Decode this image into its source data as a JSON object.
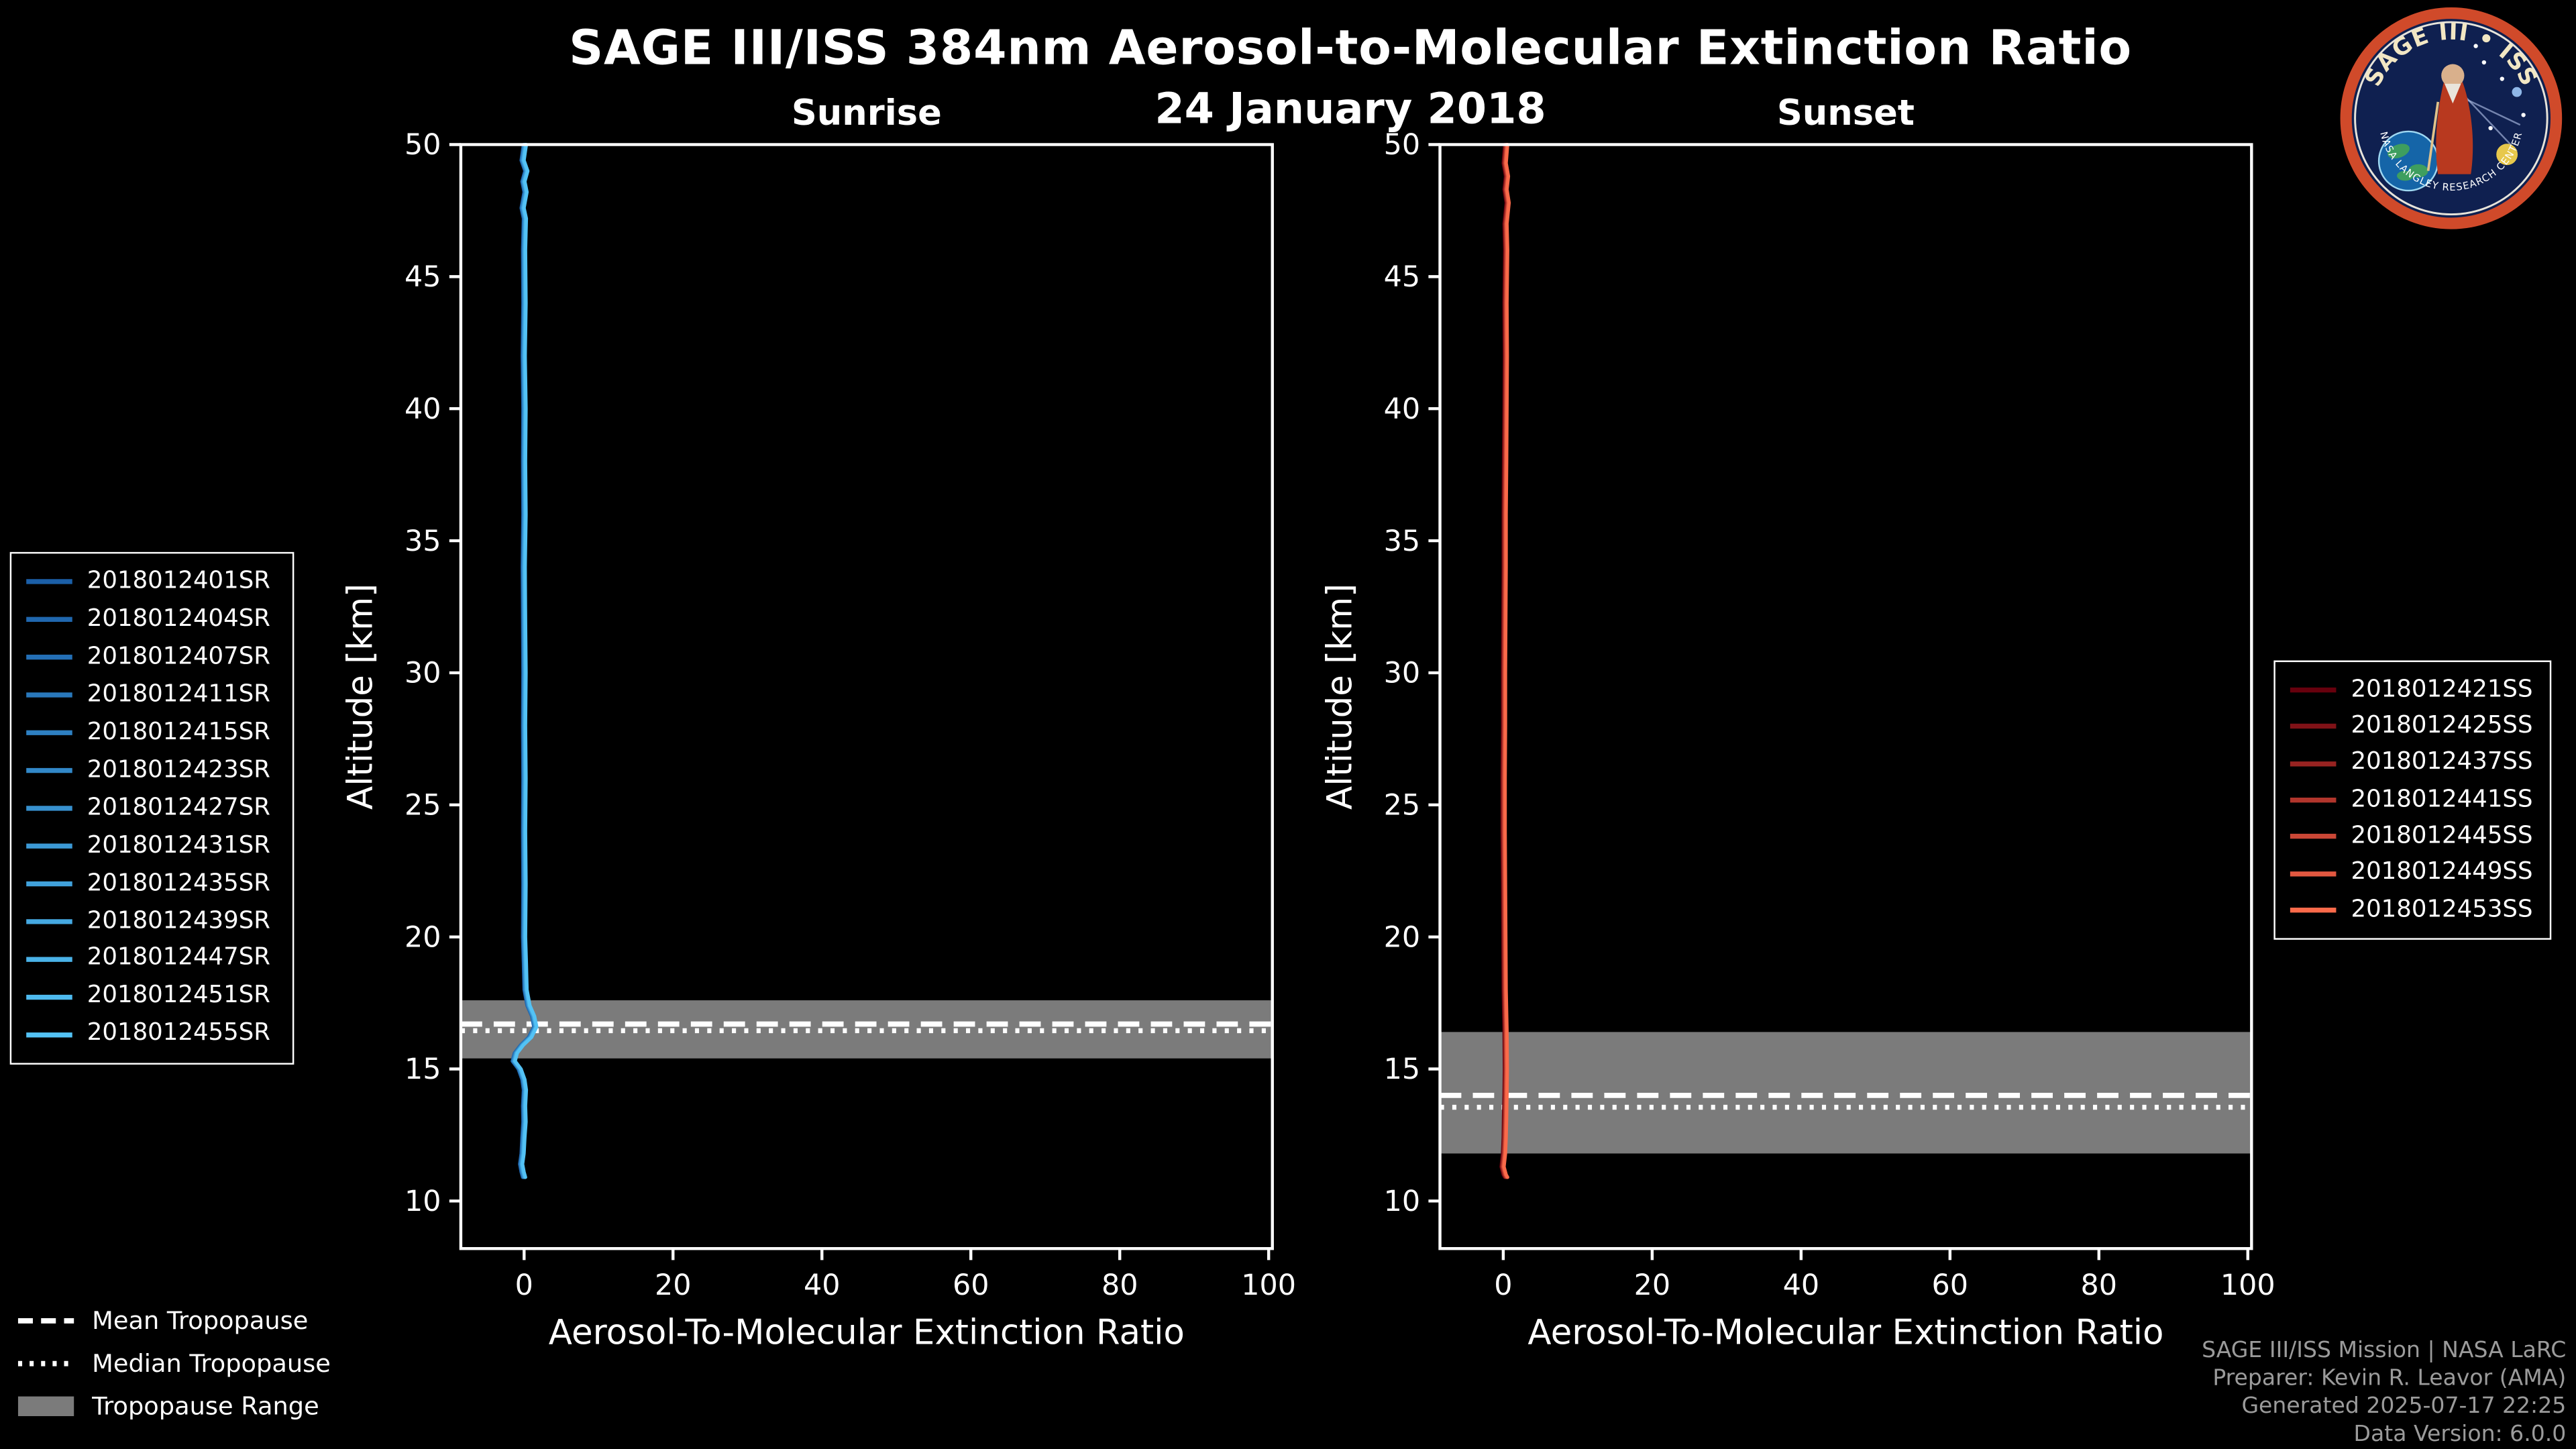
{
  "title": "SAGE III/ISS 384nm Aerosol-to-Molecular Extinction Ratio",
  "subtitle": "24 January 2018",
  "logo": {
    "arc_top": "SAGE III • ISS",
    "arc_bottom": "NASA LANGLEY RESEARCH CENTER"
  },
  "credits": [
    "SAGE III/ISS Mission | NASA LaRC",
    "Preparer: Kevin R. Leavor (AMA)",
    "Generated 2025-07-17 22:25",
    "Data Version: 6.0.0"
  ],
  "tropopause_legend": [
    {
      "label": "Mean Tropopause",
      "style": "dashed"
    },
    {
      "label": "Median Tropopause",
      "style": "dotted"
    },
    {
      "label": "Tropopause Range",
      "style": "band"
    }
  ],
  "colors": {
    "background": "#000000",
    "foreground": "#ffffff",
    "band": "#7b7b7b",
    "credits_text": "#9b9b9b",
    "sunrise_accent": "#53c2f5",
    "sunset_accent": "#fb6a4a"
  },
  "chart_data": {
    "type": "line",
    "panels": [
      {
        "id": "sunrise",
        "title": "Sunrise",
        "xlabel": "Aerosol-To-Molecular Extinction Ratio",
        "ylabel": "Altitude [km]",
        "xlim": [
          -8.5,
          100.5
        ],
        "ylim": [
          8.2,
          50
        ],
        "xticks": [
          0,
          20,
          40,
          60,
          80,
          100
        ],
        "yticks": [
          10,
          15,
          20,
          25,
          30,
          35,
          40,
          45,
          50
        ],
        "tropopause_range_km": [
          15.4,
          17.6
        ],
        "mean_tropopause_km": 16.7,
        "median_tropopause_km": 16.45,
        "series": [
          {
            "label": "2018012401SR",
            "color": "#1b5fa8"
          },
          {
            "label": "2018012404SR",
            "color": "#2067ae"
          },
          {
            "label": "2018012407SR",
            "color": "#246fb5"
          },
          {
            "label": "2018012411SR",
            "color": "#2978bb"
          },
          {
            "label": "2018012415SR",
            "color": "#2e80c2"
          },
          {
            "label": "2018012423SR",
            "color": "#3288c8"
          },
          {
            "label": "2018012427SR",
            "color": "#3790ce"
          },
          {
            "label": "2018012431SR",
            "color": "#3c99d5"
          },
          {
            "label": "2018012435SR",
            "color": "#40a1db"
          },
          {
            "label": "2018012439SR",
            "color": "#45a9e2"
          },
          {
            "label": "2018012447SR",
            "color": "#4ab2e8"
          },
          {
            "label": "2018012451SR",
            "color": "#4ebaef"
          },
          {
            "label": "2018012455SR",
            "color": "#53c2f5"
          }
        ],
        "profile_alt_ratio": [
          [
            50,
            0.1
          ],
          [
            49.4,
            -0.2
          ],
          [
            49,
            0.3
          ],
          [
            48.6,
            -0.1
          ],
          [
            48.2,
            0.2
          ],
          [
            47.6,
            -0.2
          ],
          [
            47.2,
            0.1
          ],
          [
            46,
            0
          ],
          [
            44,
            0.05
          ],
          [
            42,
            -0.05
          ],
          [
            40,
            0.05
          ],
          [
            38,
            0
          ],
          [
            36,
            0.05
          ],
          [
            34,
            -0.05
          ],
          [
            32,
            0
          ],
          [
            30,
            0.05
          ],
          [
            28,
            0
          ],
          [
            26,
            0.05
          ],
          [
            24,
            0
          ],
          [
            22,
            0.05
          ],
          [
            20,
            0
          ],
          [
            19,
            0.1
          ],
          [
            18,
            0.2
          ],
          [
            17.4,
            0.6
          ],
          [
            17,
            1.2
          ],
          [
            16.6,
            1.5
          ],
          [
            16.2,
            0.8
          ],
          [
            15.9,
            -0.3
          ],
          [
            15.6,
            -1.1
          ],
          [
            15.3,
            -1.4
          ],
          [
            15.0,
            -0.6
          ],
          [
            14.6,
            -0.1
          ],
          [
            14.2,
            0.1
          ],
          [
            13.6,
            0
          ],
          [
            13,
            0.05
          ],
          [
            12.4,
            -0.1
          ],
          [
            11.8,
            -0.2
          ],
          [
            11.4,
            -0.4
          ],
          [
            11.1,
            -0.2
          ],
          [
            10.9,
            0
          ]
        ]
      },
      {
        "id": "sunset",
        "title": "Sunset",
        "xlabel": "Aerosol-To-Molecular Extinction Ratio",
        "ylabel": "Altitude [km]",
        "xlim": [
          -8.5,
          100.5
        ],
        "ylim": [
          8.2,
          50
        ],
        "xticks": [
          0,
          20,
          40,
          60,
          80,
          100
        ],
        "yticks": [
          10,
          15,
          20,
          25,
          30,
          35,
          40,
          45,
          50
        ],
        "tropopause_range_km": [
          11.8,
          16.4
        ],
        "mean_tropopause_km": 14.0,
        "median_tropopause_km": 13.55,
        "series": [
          {
            "label": "2018012421SS",
            "color": "#67000d"
          },
          {
            "label": "2018012425SS",
            "color": "#801217"
          },
          {
            "label": "2018012437SS",
            "color": "#982321"
          },
          {
            "label": "2018012441SS",
            "color": "#b1352c"
          },
          {
            "label": "2018012445SS",
            "color": "#ca4736"
          },
          {
            "label": "2018012449SS",
            "color": "#e25840"
          },
          {
            "label": "2018012453SS",
            "color": "#fb6a4a"
          }
        ],
        "profile_alt_ratio": [
          [
            50,
            0.4
          ],
          [
            49.3,
            0.2
          ],
          [
            48.8,
            0.5
          ],
          [
            48.3,
            0.3
          ],
          [
            47.8,
            0.6
          ],
          [
            47,
            0.3
          ],
          [
            46,
            0.4
          ],
          [
            44,
            0.3
          ],
          [
            42,
            0.35
          ],
          [
            40,
            0.3
          ],
          [
            38,
            0.25
          ],
          [
            36,
            0.2
          ],
          [
            34,
            0.2
          ],
          [
            32,
            0.15
          ],
          [
            30,
            0.1
          ],
          [
            28,
            0.1
          ],
          [
            26,
            0.05
          ],
          [
            24,
            0.05
          ],
          [
            22,
            0.1
          ],
          [
            20,
            0.15
          ],
          [
            18,
            0.2
          ],
          [
            16.5,
            0.3
          ],
          [
            15,
            0.35
          ],
          [
            14,
            0.3
          ],
          [
            13.2,
            0.25
          ],
          [
            12.4,
            0.2
          ],
          [
            11.8,
            0.1
          ],
          [
            11.3,
            -0.1
          ],
          [
            11.0,
            0.2
          ],
          [
            10.9,
            0.4
          ]
        ]
      }
    ]
  }
}
